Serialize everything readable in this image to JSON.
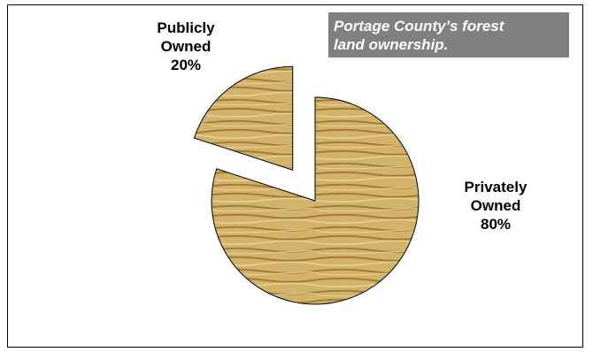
{
  "chart_data": {
    "type": "pie",
    "title_lines": [
      "Portage County’s forest",
      "land ownership."
    ],
    "slices": [
      {
        "label_lines": [
          "Publicly",
          "Owned",
          "20%"
        ],
        "value": 20,
        "exploded": true
      },
      {
        "label_lines": [
          "Privately",
          "Owned",
          "80%"
        ],
        "value": 80,
        "exploded": false
      }
    ],
    "colors": {
      "fill": "#d2b36a",
      "grain_light": "#e8d29a",
      "grain_dark": "#a57b33",
      "edge": "#000000"
    }
  }
}
